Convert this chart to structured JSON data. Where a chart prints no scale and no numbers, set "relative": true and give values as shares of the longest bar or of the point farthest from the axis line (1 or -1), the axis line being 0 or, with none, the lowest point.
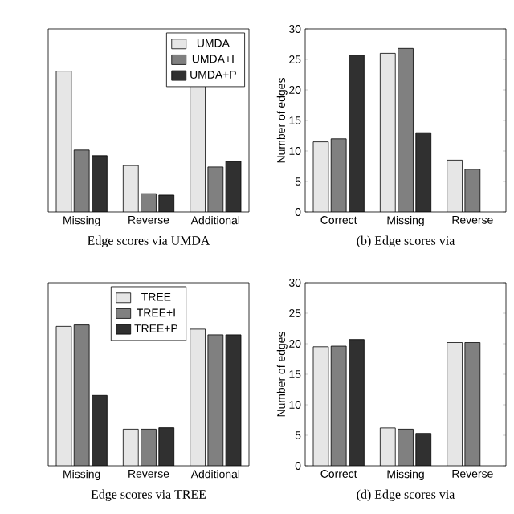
{
  "chart_data": [
    {
      "type": "bar",
      "title": "Edge scores via UMDA",
      "categories": [
        "Missing",
        "Reverse",
        "Additional"
      ],
      "relative": true,
      "legend": "top right",
      "series": [
        {
          "name": "UMDA",
          "color": "#e6e6e6",
          "values": [
            1,
            0.33,
            0.95
          ]
        },
        {
          "name": "UMDA+I",
          "color": "#808080",
          "values": [
            0.44,
            0.13,
            0.32
          ]
        },
        {
          "name": "UMDA+P",
          "color": "#303030",
          "values": [
            0.4,
            0.12,
            0.36
          ]
        }
      ]
    },
    {
      "type": "bar",
      "title": "(b) Edge scores via",
      "ylabel": "Number of edges",
      "categories": [
        "Correct",
        "Missing",
        "Reverse"
      ],
      "ylim": [
        0,
        30
      ],
      "yticks": [
        0,
        5,
        10,
        15,
        20,
        25,
        30
      ],
      "series": [
        {
          "color": "#e6e6e6",
          "values": [
            11.5,
            26,
            8.5
          ]
        },
        {
          "color": "#808080",
          "values": [
            12,
            26.8,
            7
          ]
        },
        {
          "color": "#303030",
          "values": [
            25.7,
            13,
            null
          ]
        }
      ]
    },
    {
      "type": "bar",
      "title": "Edge scores via TREE",
      "categories": [
        "Missing",
        "Reverse",
        "Additional"
      ],
      "relative": true,
      "legend": "top",
      "series": [
        {
          "name": "TREE",
          "color": "#e6e6e6",
          "values": [
            0.99,
            0.26,
            0.97
          ]
        },
        {
          "name": "TREE+I",
          "color": "#808080",
          "values": [
            1,
            0.26,
            0.93
          ]
        },
        {
          "name": "TREE+P",
          "color": "#303030",
          "values": [
            0.5,
            0.27,
            0.93
          ]
        }
      ]
    },
    {
      "type": "bar",
      "title": "(d) Edge scores via",
      "ylabel": "Number of edges",
      "categories": [
        "Correct",
        "Missing",
        "Reverse"
      ],
      "ylim": [
        0,
        30
      ],
      "yticks": [
        0,
        5,
        10,
        15,
        20,
        25,
        30
      ],
      "series": [
        {
          "color": "#e6e6e6",
          "values": [
            19.5,
            6.2,
            20.2
          ]
        },
        {
          "color": "#808080",
          "values": [
            19.6,
            6,
            20.2
          ]
        },
        {
          "color": "#303030",
          "values": [
            20.7,
            5.3,
            null
          ]
        }
      ]
    }
  ]
}
